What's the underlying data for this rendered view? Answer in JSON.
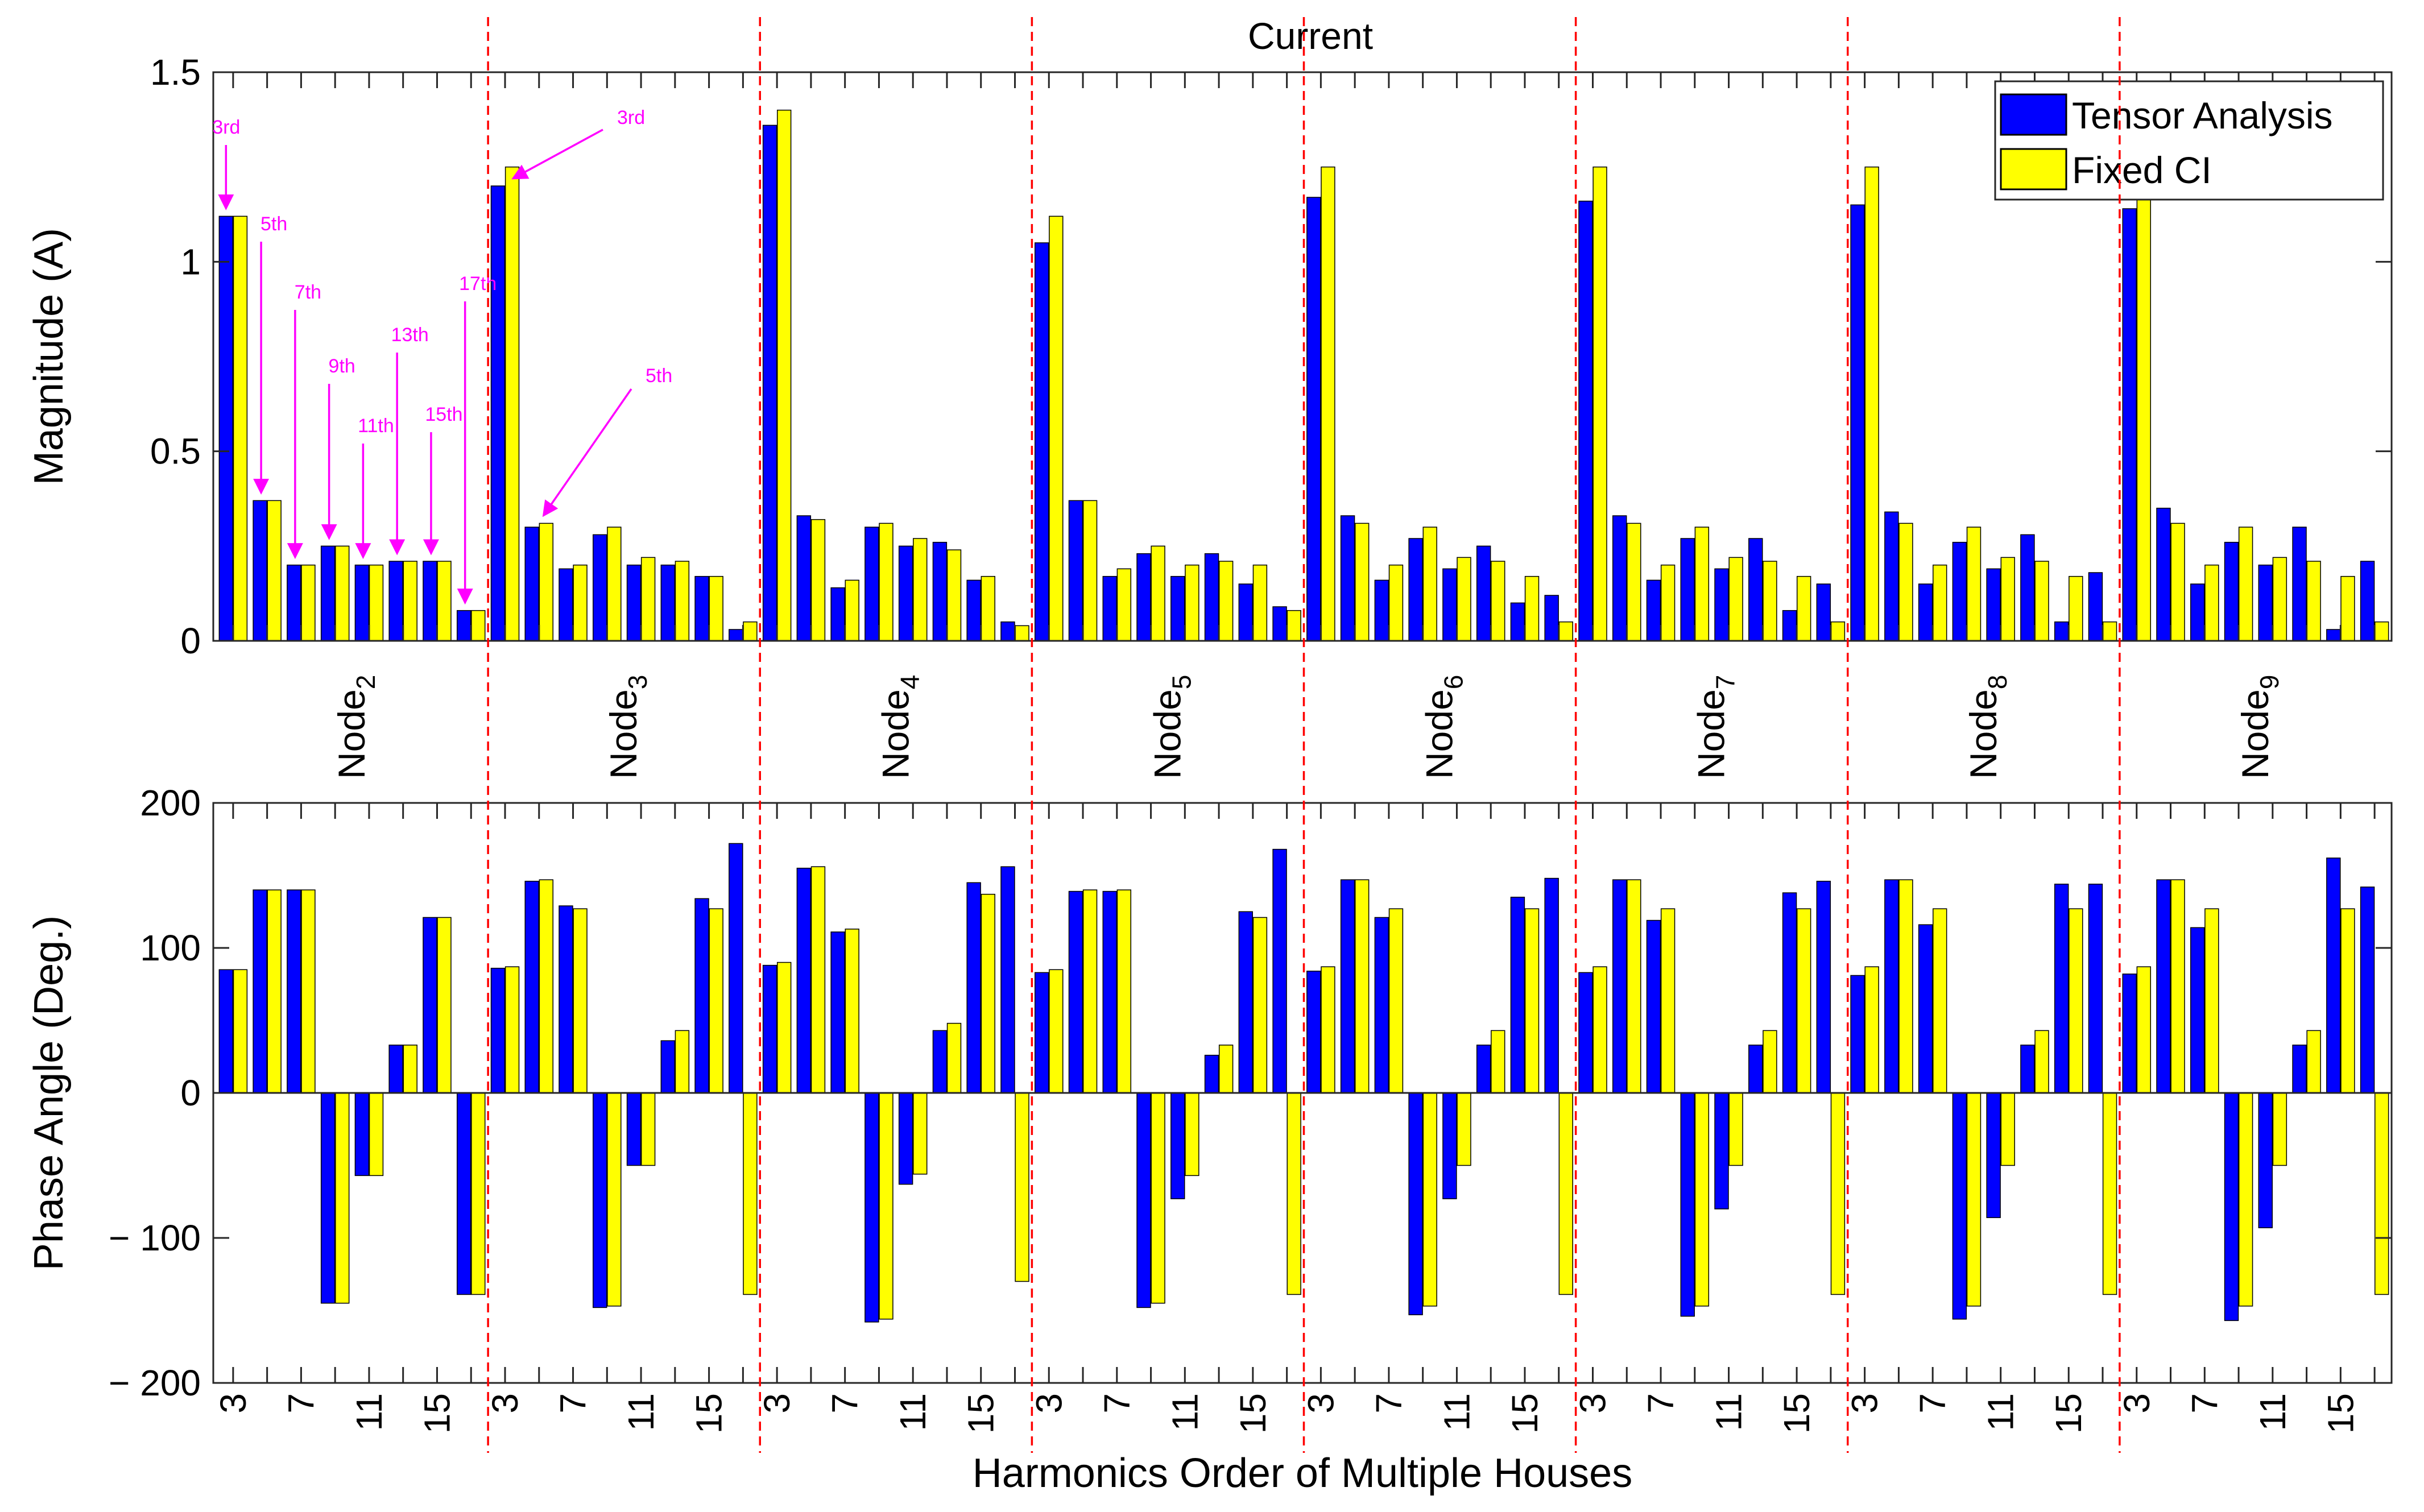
{
  "chart_data": {
    "title": "Current",
    "xlabel": "Harmonics Order of Multiple Houses",
    "type": "bar",
    "colors": {
      "tensor": "#0000ff",
      "fixed": "#ffff00",
      "divider": "#ff0000",
      "annotation": "#ff00ff"
    },
    "harmonics": [
      3,
      5,
      7,
      9,
      11,
      13,
      15,
      17
    ],
    "x_tick_labels": [
      "3",
      "7",
      "11",
      "15"
    ],
    "nodes": [
      {
        "name": "Node",
        "sub": "2"
      },
      {
        "name": "Node",
        "sub": "3"
      },
      {
        "name": "Node",
        "sub": "4"
      },
      {
        "name": "Node",
        "sub": "5"
      },
      {
        "name": "Node",
        "sub": "6"
      },
      {
        "name": "Node",
        "sub": "7"
      },
      {
        "name": "Node",
        "sub": "8"
      },
      {
        "name": "Node",
        "sub": "9"
      }
    ],
    "legend": {
      "placement": "top-right",
      "entries": [
        "Tensor Analysis",
        "Fixed CI"
      ]
    },
    "magnitude": {
      "ylabel": "Magnitude (A)",
      "ylim": [
        0,
        1.5
      ],
      "yticks": [
        0,
        0.5,
        1,
        1.5
      ],
      "ytick_labels": [
        "0",
        "0.5",
        "1",
        "1.5"
      ],
      "series": [
        {
          "name": "Tensor Analysis",
          "values": [
            1.12,
            0.37,
            0.2,
            0.25,
            0.2,
            0.21,
            0.21,
            0.08,
            1.2,
            0.3,
            0.19,
            0.28,
            0.2,
            0.2,
            0.17,
            0.03,
            1.36,
            0.33,
            0.14,
            0.3,
            0.25,
            0.26,
            0.16,
            0.05,
            1.05,
            0.37,
            0.17,
            0.23,
            0.17,
            0.23,
            0.15,
            0.09,
            1.17,
            0.33,
            0.16,
            0.27,
            0.19,
            0.25,
            0.1,
            0.12,
            1.16,
            0.33,
            0.16,
            0.27,
            0.19,
            0.27,
            0.08,
            0.15,
            1.15,
            0.34,
            0.15,
            0.26,
            0.19,
            0.28,
            0.05,
            0.18,
            1.14,
            0.35,
            0.15,
            0.26,
            0.2,
            0.3,
            0.03,
            0.21
          ]
        },
        {
          "name": "Fixed CI",
          "values": [
            1.12,
            0.37,
            0.2,
            0.25,
            0.2,
            0.21,
            0.21,
            0.08,
            1.25,
            0.31,
            0.2,
            0.3,
            0.22,
            0.21,
            0.17,
            0.05,
            1.4,
            0.32,
            0.16,
            0.31,
            0.27,
            0.24,
            0.17,
            0.04,
            1.12,
            0.37,
            0.19,
            0.25,
            0.2,
            0.21,
            0.2,
            0.08,
            1.25,
            0.31,
            0.2,
            0.3,
            0.22,
            0.21,
            0.17,
            0.05,
            1.25,
            0.31,
            0.2,
            0.3,
            0.22,
            0.21,
            0.17,
            0.05,
            1.25,
            0.31,
            0.2,
            0.3,
            0.22,
            0.21,
            0.17,
            0.05,
            1.25,
            0.31,
            0.2,
            0.3,
            0.22,
            0.21,
            0.17,
            0.05
          ]
        }
      ],
      "annotations": [
        {
          "label": "3rd",
          "node": 0,
          "harmonic": 3
        },
        {
          "label": "5th",
          "node": 0,
          "harmonic": 5
        },
        {
          "label": "7th",
          "node": 0,
          "harmonic": 7
        },
        {
          "label": "9th",
          "node": 0,
          "harmonic": 9
        },
        {
          "label": "11th",
          "node": 0,
          "harmonic": 11
        },
        {
          "label": "13th",
          "node": 0,
          "harmonic": 13
        },
        {
          "label": "15th",
          "node": 0,
          "harmonic": 15
        },
        {
          "label": "17th",
          "node": 0,
          "harmonic": 17
        },
        {
          "label": "3rd",
          "node": 1,
          "harmonic": 3
        },
        {
          "label": "5th",
          "node": 1,
          "harmonic": 5
        }
      ]
    },
    "phase": {
      "ylabel": "Phase Angle (Deg.)",
      "ylim": [
        -200,
        200
      ],
      "yticks": [
        -200,
        -100,
        0,
        100,
        200
      ],
      "ytick_labels": [
        "− 200",
        "− 100",
        "0",
        "100",
        "200"
      ],
      "series": [
        {
          "name": "Tensor Analysis",
          "values": [
            85,
            140,
            140,
            -145,
            -57,
            33,
            121,
            -139,
            86,
            146,
            129,
            -148,
            -50,
            36,
            134,
            172,
            88,
            155,
            111,
            -158,
            -63,
            43,
            145,
            156,
            83,
            139,
            139,
            -148,
            -73,
            26,
            125,
            168,
            84,
            147,
            121,
            -153,
            -73,
            33,
            135,
            148,
            83,
            147,
            119,
            -154,
            -80,
            33,
            138,
            146,
            81,
            147,
            116,
            -156,
            -86,
            33,
            144,
            144,
            82,
            147,
            114,
            -157,
            -93,
            33,
            162,
            142
          ]
        },
        {
          "name": "Fixed CI",
          "values": [
            85,
            140,
            140,
            -145,
            -57,
            33,
            121,
            -139,
            87,
            147,
            127,
            -147,
            -50,
            43,
            127,
            -139,
            90,
            156,
            113,
            -156,
            -56,
            48,
            137,
            -130,
            85,
            140,
            140,
            -145,
            -57,
            33,
            121,
            -139,
            87,
            147,
            127,
            -147,
            -50,
            43,
            127,
            -139,
            87,
            147,
            127,
            -147,
            -50,
            43,
            127,
            -139,
            87,
            147,
            127,
            -147,
            -50,
            43,
            127,
            -139,
            87,
            147,
            127,
            -147,
            -50,
            43,
            127,
            -139
          ]
        }
      ]
    }
  }
}
